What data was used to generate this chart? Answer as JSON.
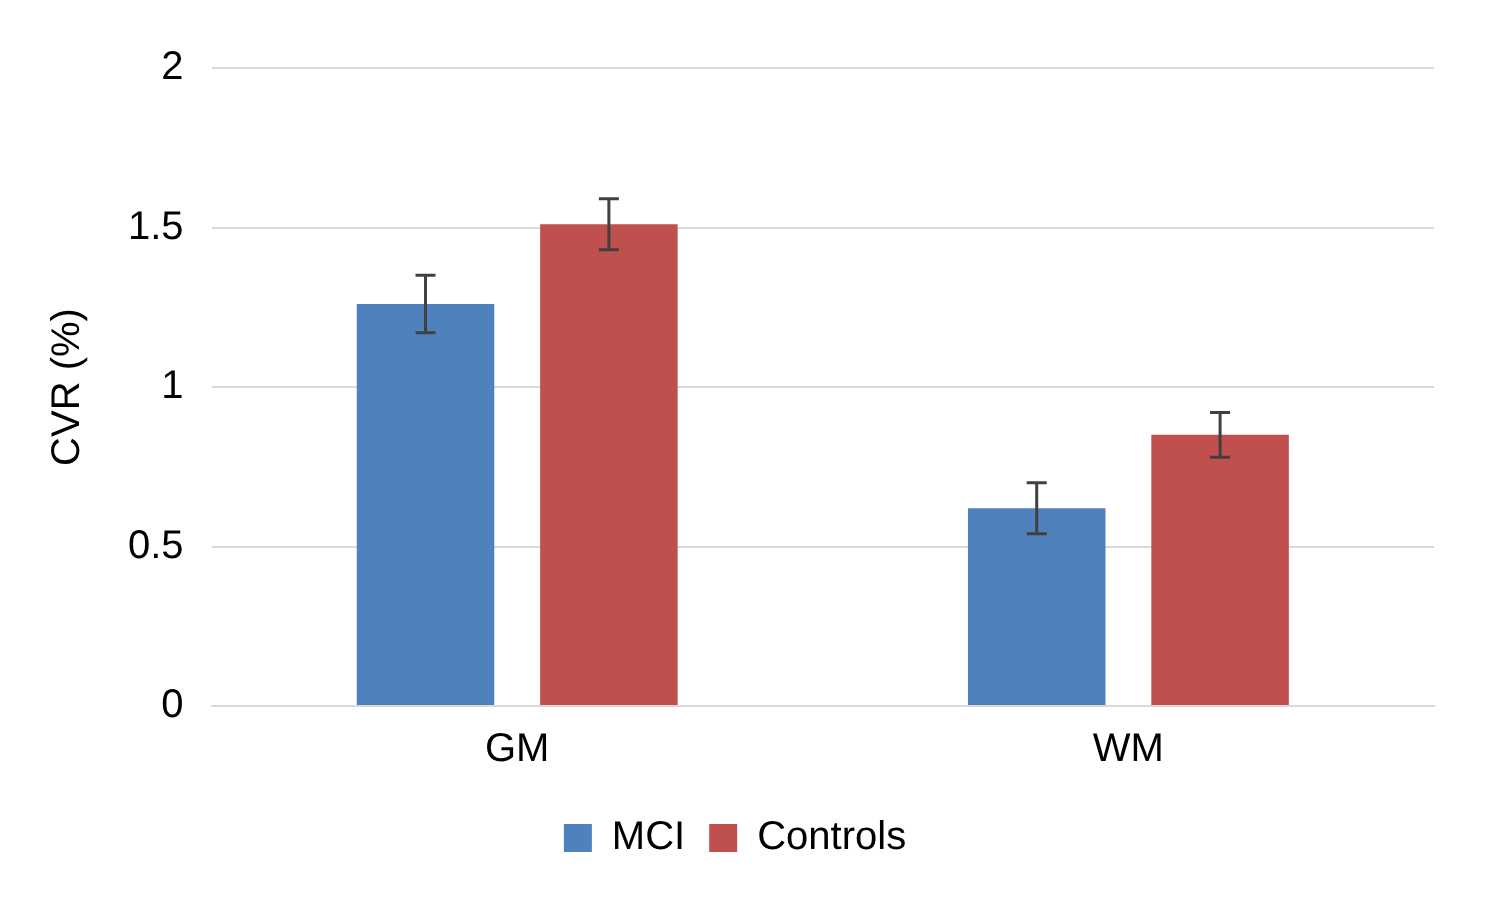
{
  "chart_data": {
    "type": "bar",
    "ylabel": "CVR (%)",
    "categories": [
      "GM",
      "WM"
    ],
    "series": [
      {
        "name": "MCI",
        "color": "#4f81bd",
        "values": [
          1.26,
          0.62
        ],
        "errors": [
          0.09,
          0.08
        ]
      },
      {
        "name": "Controls",
        "color": "#c0504d",
        "values": [
          1.51,
          0.85
        ],
        "errors": [
          0.08,
          0.07
        ]
      }
    ],
    "ylim": [
      0,
      2
    ],
    "yticks": [
      0,
      0.5,
      1,
      1.5,
      2
    ],
    "grid": "y",
    "legend": "bottom"
  }
}
